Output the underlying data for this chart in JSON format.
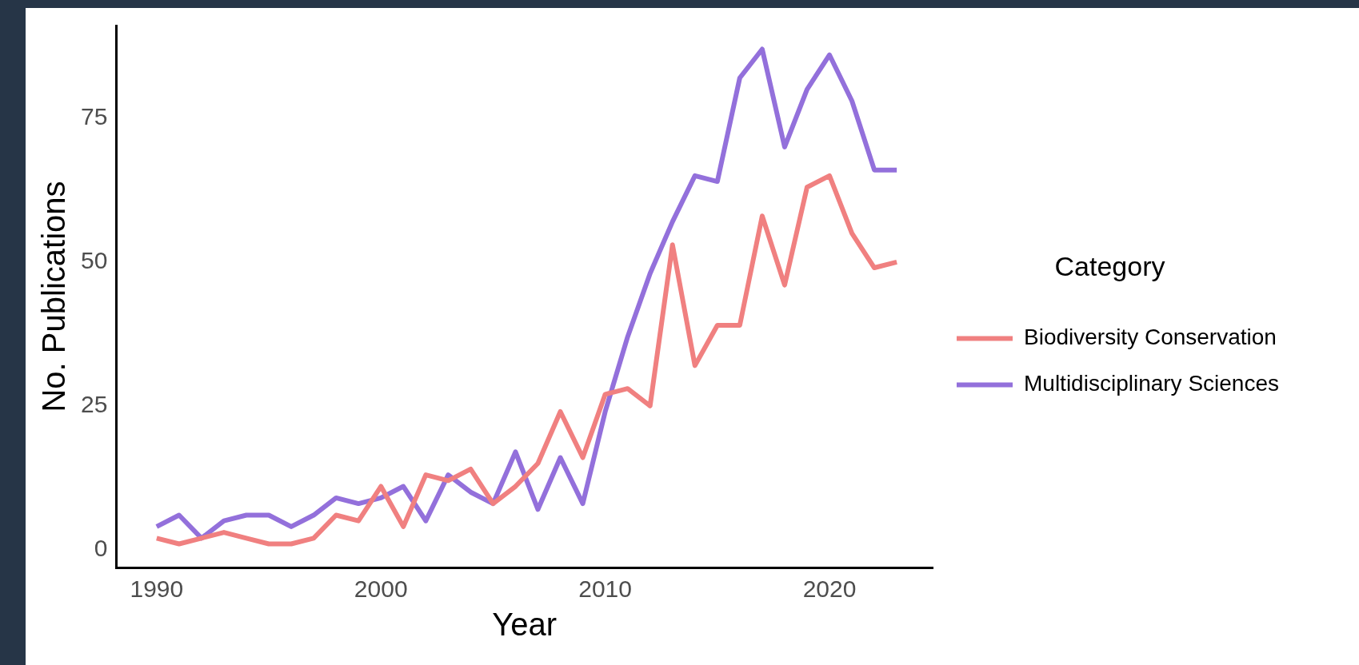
{
  "chart_data": {
    "type": "line",
    "xlabel": "Year",
    "ylabel": "No. Publications",
    "legend_title": "Category",
    "x": [
      1990,
      1991,
      1992,
      1993,
      1994,
      1995,
      1996,
      1997,
      1998,
      1999,
      2000,
      2001,
      2002,
      2003,
      2004,
      2005,
      2006,
      2007,
      2008,
      2009,
      2010,
      2011,
      2012,
      2013,
      2014,
      2015,
      2016,
      2017,
      2018,
      2019,
      2020,
      2021,
      2022,
      2023
    ],
    "series": [
      {
        "name": "Biodiversity Conservation",
        "color": "#f08080",
        "values": [
          2,
          1,
          2,
          3,
          2,
          1,
          1,
          2,
          6,
          5,
          11,
          4,
          13,
          12,
          14,
          8,
          11,
          15,
          24,
          16,
          27,
          28,
          25,
          53,
          32,
          39,
          39,
          58,
          46,
          63,
          65,
          55,
          49,
          50
        ]
      },
      {
        "name": "Multidisciplinary Sciences",
        "color": "#9370db",
        "values": [
          4,
          6,
          2,
          5,
          6,
          6,
          4,
          6,
          9,
          8,
          9,
          11,
          5,
          13,
          10,
          8,
          17,
          7,
          16,
          8,
          24,
          37,
          48,
          57,
          65,
          64,
          82,
          87,
          70,
          80,
          86,
          78,
          66,
          66
        ]
      }
    ],
    "xlim": [
      1988.2,
      2024.6
    ],
    "xticks": [
      1990,
      2000,
      2010,
      2020
    ],
    "ylim": [
      -3.1,
      91.1
    ],
    "yticks": [
      0,
      25,
      50,
      75
    ],
    "grid": false,
    "legend": "right",
    "marker": "none",
    "line_style": "solid"
  }
}
